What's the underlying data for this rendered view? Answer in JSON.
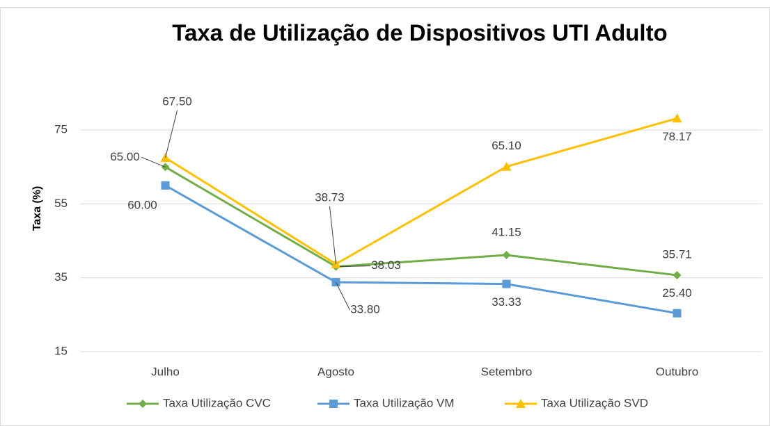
{
  "chart_data": {
    "type": "line",
    "title": "Taxa de Utilização de Dispositivos UTI Adulto",
    "y_label": "Taxa  (%)",
    "categories": [
      "Julho",
      "Agosto",
      "Setembro",
      "Outubro"
    ],
    "series": [
      {
        "name": "Taxa Utilização CVC",
        "color": "#70ad47",
        "marker": "diamond",
        "values": [
          65,
          38.03,
          41.15,
          35.71
        ],
        "value_labels": [
          "65.00",
          "38.03",
          "41.15",
          "35.71"
        ]
      },
      {
        "name": "Taxa Utilização VM",
        "color": "#5b9bd5",
        "marker": "square",
        "values": [
          60,
          33.8,
          33.33,
          25.4
        ],
        "value_labels": [
          "60.00",
          "33.80",
          "33.33",
          "25.40"
        ]
      },
      {
        "name": "Taxa Utilização SVD",
        "color": "#ffc000",
        "marker": "triangle",
        "values": [
          67.5,
          38.73,
          65.1,
          78.17
        ],
        "value_labels": [
          "67.50",
          "38.73",
          "65.10",
          "78.17"
        ]
      }
    ],
    "ylim": [
      15,
      85
    ],
    "yticks": [
      15,
      35,
      55,
      75
    ],
    "grid": true,
    "legend": "bottom"
  }
}
